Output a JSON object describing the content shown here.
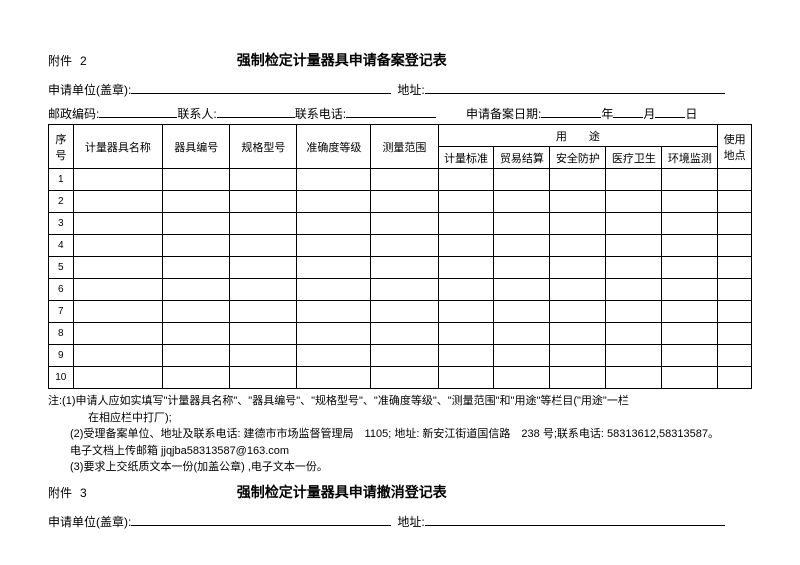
{
  "attachment2": {
    "label": "附件",
    "number": "2",
    "title": "强制检定计量器具申请备案登记表"
  },
  "header": {
    "applicant_unit_label": "申请单位(盖章):",
    "address_label": "地址:",
    "postal_label": "邮政编码:",
    "contact_person_label": "联系人:",
    "contact_phone_label": "联系电话:",
    "filing_date_label": "申请备案日期:",
    "year_label": "年",
    "month_label": "月",
    "day_label": "日"
  },
  "table": {
    "columns": {
      "seq": "序号",
      "name": "计量器具名称",
      "instrument_no": "器具编号",
      "spec": "规格型号",
      "accuracy": "准确度等级",
      "range": "测量范围",
      "usage": "用　　途",
      "usage_sub": [
        "计量标准",
        "贸易结算",
        "安全防护",
        "医疗卫生",
        "环境监测"
      ],
      "location": "使用地点"
    },
    "rows": [
      "1",
      "2",
      "3",
      "4",
      "5",
      "6",
      "7",
      "8",
      "9",
      "10"
    ]
  },
  "notes": {
    "line1a": "注:(1)申请人应如实填写\"计量器具名称\"、\"器具编号\"、\"规格型号\"、\"准确度等级\"、\"测量范围\"和\"用途\"等栏目(\"用途\"一栏",
    "line1b": "在相应栏中打厂);",
    "line2a": "(2)受理备案单位、地址及联系电话: 建德市市场监督管理局　1105; 地址: 新安江街道国信路　238 号;联系电话: 58313612,58313587。",
    "line2b": "电子文档上传邮箱  jjqjba58313587@163.com",
    "line3": "(3)要求上交纸质文本一份(加盖公章) ,电子文本一份。"
  },
  "attachment3": {
    "label": "附件",
    "number": "3",
    "title": "强制检定计量器具申请撤消登记表"
  },
  "footer": {
    "applicant_unit_label": "申请单位(盖章):",
    "address_label": "地址:"
  },
  "style": {
    "underline_color": "#000000"
  }
}
